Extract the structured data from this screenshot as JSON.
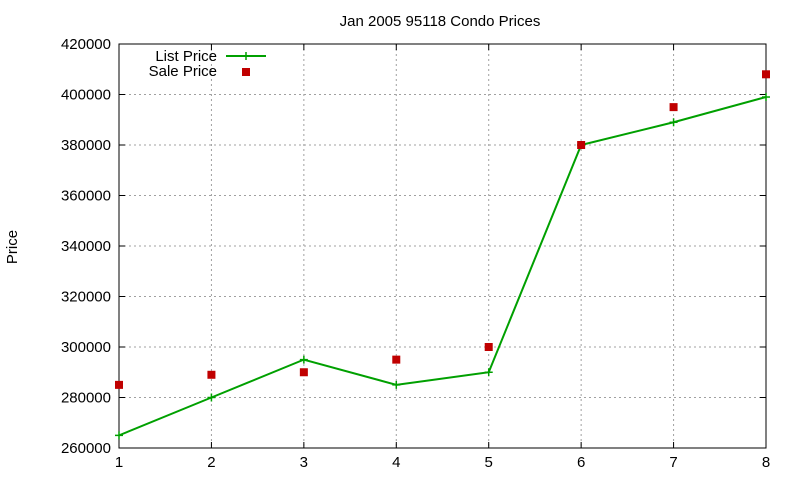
{
  "chart_data": {
    "type": "line",
    "title": "Jan 2005 95118 Condo Prices",
    "xlabel": "",
    "ylabel": "Price",
    "x": [
      1,
      2,
      3,
      4,
      5,
      6,
      7,
      8
    ],
    "xlim": [
      1,
      8
    ],
    "ylim": [
      260000,
      420000
    ],
    "xticks": [
      "1",
      "2",
      "3",
      "4",
      "5",
      "6",
      "7",
      "8"
    ],
    "yticks": [
      "260000",
      "280000",
      "300000",
      "320000",
      "340000",
      "360000",
      "380000",
      "400000",
      "420000"
    ],
    "grid": true,
    "legend_position": "top-left",
    "series": [
      {
        "name": "List Price",
        "style": "line-with-plus-markers",
        "color": "#00a000",
        "values": [
          265000,
          280000,
          295000,
          285000,
          290000,
          380000,
          389000,
          399000
        ]
      },
      {
        "name": "Sale Price",
        "style": "square-markers",
        "color": "#c00000",
        "values": [
          285000,
          289000,
          290000,
          295000,
          300000,
          380000,
          395000,
          408000
        ]
      }
    ]
  }
}
